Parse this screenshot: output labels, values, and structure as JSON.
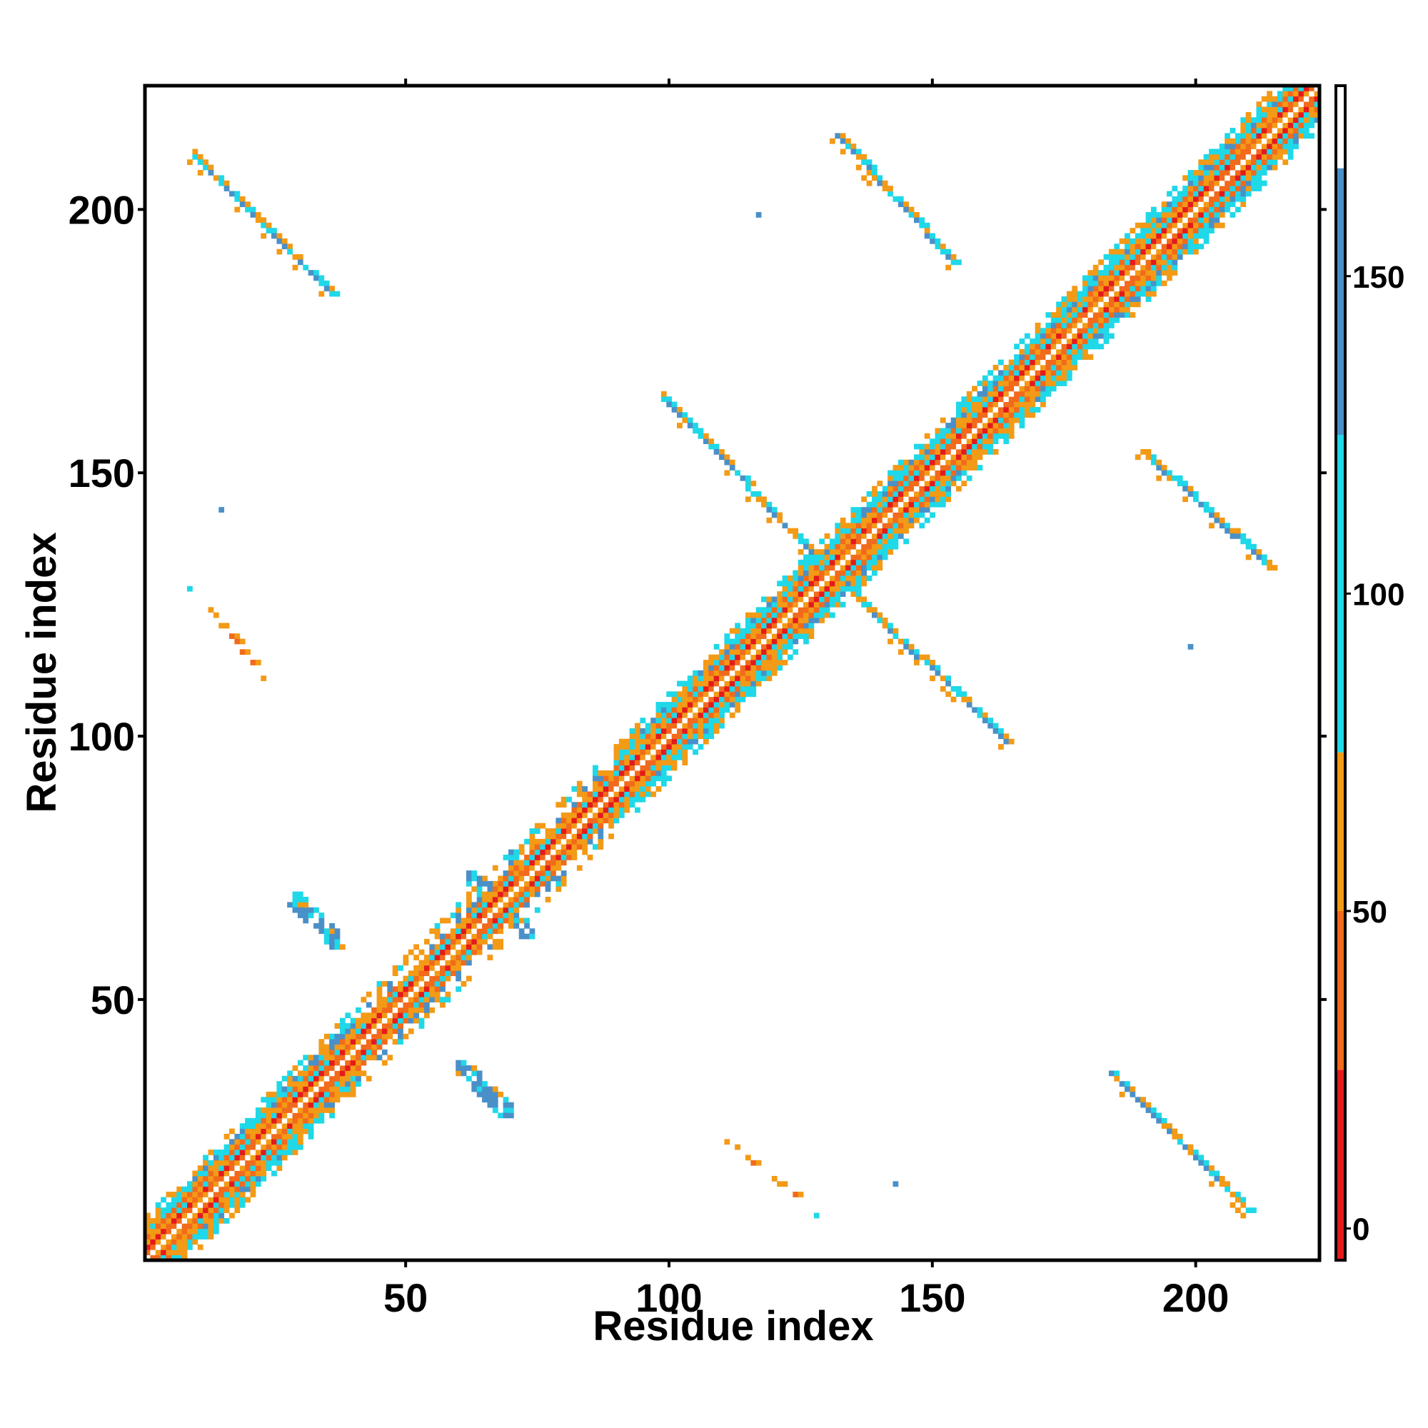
{
  "chart_data": {
    "type": "heatmap",
    "title": "",
    "xlabel": "Residue index",
    "ylabel": "Residue index",
    "xlim": [
      1,
      223
    ],
    "ylim": [
      1,
      223
    ],
    "x_ticks": [
      50,
      100,
      150,
      200
    ],
    "y_ticks": [
      50,
      100,
      150,
      200
    ],
    "colorbar": {
      "range": [
        -5,
        180
      ],
      "ticks": [
        0,
        50,
        100,
        150
      ],
      "bands": [
        {
          "from": -5,
          "to": 25,
          "color": "#e41a1c"
        },
        {
          "from": 25,
          "to": 50,
          "color": "#f26a1b"
        },
        {
          "from": 50,
          "to": 75,
          "color": "#f39a16"
        },
        {
          "from": 75,
          "to": 125,
          "color": "#1fd8e8"
        },
        {
          "from": 125,
          "to": 167,
          "color": "#4a90c8"
        },
        {
          "from": 167,
          "to": 180,
          "color": "#ffffff"
        }
      ]
    },
    "diagonal": {
      "range": [
        1,
        223
      ],
      "half_width": 8,
      "value_scheme": "offset-dependent"
    },
    "contact_strands": [
      {
        "name": "sheet-a",
        "x": [
          10,
          36
        ],
        "y": [
          210,
          184
        ],
        "kind": "antiparallel",
        "width": 2
      },
      {
        "name": "sheet-a-sym",
        "x": [
          184,
          210
        ],
        "y": [
          36,
          10
        ],
        "kind": "antiparallel",
        "width": 2
      },
      {
        "name": "sheet-b",
        "x": [
          132,
          154
        ],
        "y": [
          214,
          190
        ],
        "kind": "antiparallel",
        "width": 2
      },
      {
        "name": "sheet-b-sym",
        "x": [
          190,
          214
        ],
        "y": [
          154,
          132
        ],
        "kind": "antiparallel",
        "width": 2
      },
      {
        "name": "sheet-c",
        "x": [
          99,
          131
        ],
        "y": [
          164,
          131
        ],
        "kind": "antiparallel",
        "width": 2
      },
      {
        "name": "sheet-c-sym",
        "x": [
          131,
          164
        ],
        "y": [
          131,
          99
        ],
        "kind": "antiparallel",
        "width": 2
      },
      {
        "name": "sheet-d",
        "x": [
          13,
          24
        ],
        "y": [
          124,
          110
        ],
        "kind": "sparse",
        "width": 1
      },
      {
        "name": "sheet-d-sym",
        "x": [
          110,
          124
        ],
        "y": [
          24,
          13
        ],
        "kind": "sparse",
        "width": 1
      },
      {
        "name": "blob-a",
        "x": [
          29,
          37
        ],
        "y": [
          69,
          61
        ],
        "kind": "blob",
        "width": 2
      },
      {
        "name": "blob-a-sym",
        "x": [
          61,
          69
        ],
        "y": [
          37,
          29
        ],
        "kind": "blob",
        "width": 2
      },
      {
        "name": "blob-b",
        "x": [
          63,
          73
        ],
        "y": [
          73,
          63
        ],
        "kind": "blob",
        "width": 2
      },
      {
        "name": "blob-b-sym",
        "x": [
          71,
          76
        ],
        "y": [
          77,
          72
        ],
        "kind": "blob",
        "width": 2
      }
    ],
    "isolated_points": [
      {
        "x": 117,
        "y": 199,
        "v": 140
      },
      {
        "x": 15,
        "y": 143,
        "v": 140
      },
      {
        "x": 9,
        "y": 128,
        "v": 100
      },
      {
        "x": 199,
        "y": 117,
        "v": 140
      },
      {
        "x": 143,
        "y": 15,
        "v": 140
      },
      {
        "x": 128,
        "y": 9,
        "v": 100
      }
    ]
  }
}
